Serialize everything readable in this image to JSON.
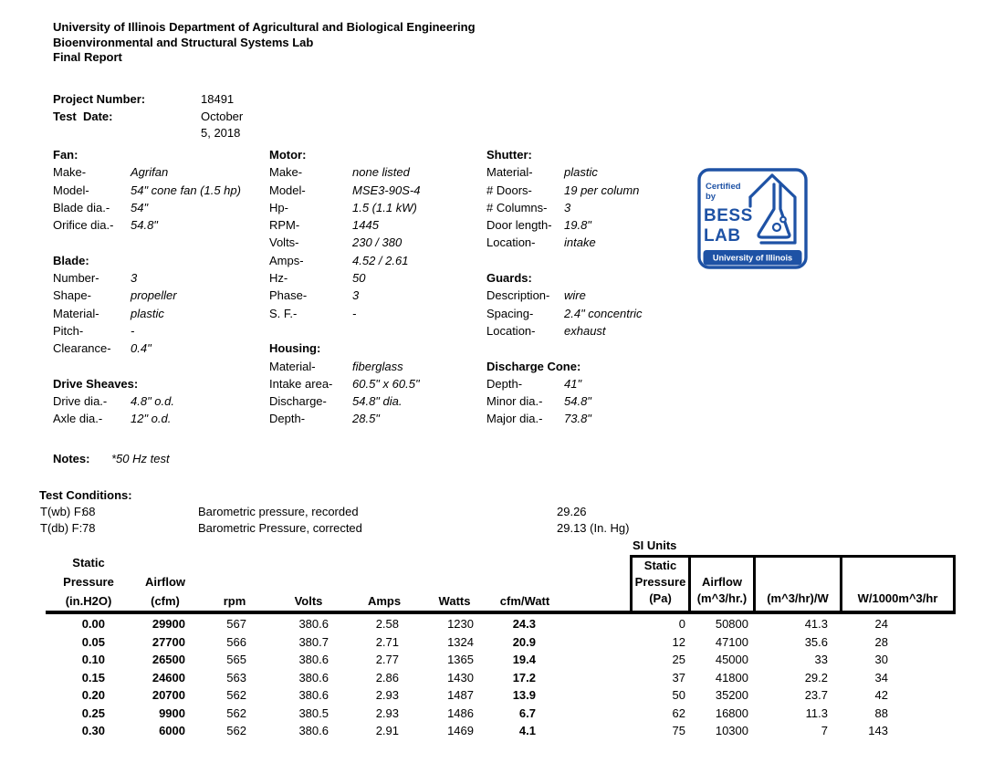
{
  "header": {
    "line1": "University of Illinois Department of Agricultural and Biological Engineering",
    "line2": "Bioenvironmental and Structural Systems Lab",
    "line3": "Final Report"
  },
  "project": {
    "number_label": "Project Number:",
    "number_value": "18491",
    "date_label": "Test  Date:",
    "date_value": "October 5, 2018"
  },
  "specs": {
    "col1": [
      {
        "t": "h",
        "label": "Fan:"
      },
      {
        "t": "r",
        "label": "Make-",
        "value": "Agrifan"
      },
      {
        "t": "r",
        "label": "Model-",
        "value": "54\" cone fan (1.5 hp)"
      },
      {
        "t": "r",
        "label": "Blade dia.-",
        "value": "54\""
      },
      {
        "t": "r",
        "label": "Orifice dia.-",
        "value": "54.8\""
      },
      {
        "t": "b"
      },
      {
        "t": "h",
        "label": "Blade:"
      },
      {
        "t": "r",
        "label": "Number-",
        "value": "3"
      },
      {
        "t": "r",
        "label": "Shape-",
        "value": "propeller"
      },
      {
        "t": "r",
        "label": "Material-",
        "value": "plastic"
      },
      {
        "t": "r",
        "label": "Pitch-",
        "value": "-"
      },
      {
        "t": "r",
        "label": "Clearance-",
        "value": "0.4\""
      },
      {
        "t": "b"
      },
      {
        "t": "h",
        "label": "Drive Sheaves:"
      },
      {
        "t": "r",
        "label": "Drive dia.-",
        "value": "4.8\" o.d."
      },
      {
        "t": "r",
        "label": "Axle dia.-",
        "value": "12\" o.d."
      }
    ],
    "col2": [
      {
        "t": "h",
        "label": "Motor:"
      },
      {
        "t": "r",
        "label": "Make-",
        "value": "none listed"
      },
      {
        "t": "r",
        "label": "Model-",
        "value": "MSE3-90S-4"
      },
      {
        "t": "r",
        "label": "Hp-",
        "value": "1.5 (1.1 kW)"
      },
      {
        "t": "r",
        "label": "RPM-",
        "value": "1445"
      },
      {
        "t": "r",
        "label": "Volts-",
        "value": "230 / 380"
      },
      {
        "t": "r",
        "label": "Amps-",
        "value": "4.52 / 2.61"
      },
      {
        "t": "r",
        "label": "Hz-",
        "value": "50"
      },
      {
        "t": "r",
        "label": "Phase-",
        "value": "3"
      },
      {
        "t": "r",
        "label": "S. F.-",
        "value": "-"
      },
      {
        "t": "b"
      },
      {
        "t": "h",
        "label": "Housing:"
      },
      {
        "t": "r",
        "label": "Material-",
        "value": "fiberglass"
      },
      {
        "t": "r",
        "label": "Intake area-",
        "value": "60.5\" x 60.5\""
      },
      {
        "t": "r",
        "label": "Discharge-",
        "value": "54.8\" dia."
      },
      {
        "t": "r",
        "label": "Depth-",
        "value": "28.5\""
      }
    ],
    "col3": [
      {
        "t": "h",
        "label": "Shutter:"
      },
      {
        "t": "r",
        "label": "Material-",
        "value": "plastic"
      },
      {
        "t": "r",
        "label": "# Doors-",
        "value": "19 per column"
      },
      {
        "t": "r",
        "label": "# Columns-",
        "value": "3"
      },
      {
        "t": "r",
        "label": "Door length-",
        "value": "19.8\""
      },
      {
        "t": "r",
        "label": "Location-",
        "value": "intake"
      },
      {
        "t": "b"
      },
      {
        "t": "h",
        "label": "Guards:"
      },
      {
        "t": "r",
        "label": "Description-",
        "value": "wire"
      },
      {
        "t": "r",
        "label": "Spacing-",
        "value": "2.4\" concentric"
      },
      {
        "t": "r",
        "label": "Location-",
        "value": "exhaust"
      },
      {
        "t": "b"
      },
      {
        "t": "h",
        "label": "Discharge Cone:"
      },
      {
        "t": "r",
        "label": "Depth-",
        "value": "41\""
      },
      {
        "t": "r",
        "label": "Minor dia.-",
        "value": "54.8\""
      },
      {
        "t": "r",
        "label": "Major dia.-",
        "value": "73.8\""
      }
    ]
  },
  "logo": {
    "certified": "Certified",
    "by": "by",
    "name1": "BESS",
    "name2": "LAB",
    "footer": "University of Illinois",
    "blue": "#1e52a5"
  },
  "notes": {
    "label": "Notes:",
    "value": "*50 Hz test"
  },
  "test_conditions": {
    "title": "Test Conditions:",
    "rows": [
      {
        "t_label": "T(wb) F:",
        "t_value": "68",
        "b_label": "Barometric pressure, recorded",
        "b_value": "29.26"
      },
      {
        "t_label": "T(db) F:",
        "t_value": "78",
        "b_label": "Barometric Pressure, corrected",
        "b_value": "29.13 (In. Hg)"
      }
    ]
  },
  "table": {
    "si_units_label": "SI Units",
    "imperial_headers": [
      [
        "Static",
        "Pressure",
        "(in.H2O)"
      ],
      [
        "",
        "Airflow",
        "(cfm)"
      ],
      [
        "",
        "",
        "rpm"
      ],
      [
        "",
        "",
        "Volts"
      ],
      [
        "",
        "",
        "Amps"
      ],
      [
        "",
        "",
        "Watts"
      ],
      [
        "",
        "",
        "cfm/Watt"
      ]
    ],
    "si_headers": [
      [
        "Static",
        "Pressure",
        "(Pa)"
      ],
      [
        "",
        "Airflow",
        "(m^3/hr.)"
      ],
      [
        "",
        "",
        "(m^3/hr)/W"
      ],
      [
        "",
        "",
        "W/1000m^3/hr"
      ]
    ],
    "rows": [
      [
        "0.00",
        "29900",
        "567",
        "380.6",
        "2.58",
        "1230",
        "24.3",
        "0",
        "50800",
        "41.3",
        "24"
      ],
      [
        "0.05",
        "27700",
        "566",
        "380.7",
        "2.71",
        "1324",
        "20.9",
        "12",
        "47100",
        "35.6",
        "28"
      ],
      [
        "0.10",
        "26500",
        "565",
        "380.6",
        "2.77",
        "1365",
        "19.4",
        "25",
        "45000",
        "33",
        "30"
      ],
      [
        "0.15",
        "24600",
        "563",
        "380.6",
        "2.86",
        "1430",
        "17.2",
        "37",
        "41800",
        "29.2",
        "34"
      ],
      [
        "0.20",
        "20700",
        "562",
        "380.6",
        "2.93",
        "1487",
        "13.9",
        "50",
        "35200",
        "23.7",
        "42"
      ],
      [
        "0.25",
        "9900",
        "562",
        "380.5",
        "2.93",
        "1486",
        "6.7",
        "62",
        "16800",
        "11.3",
        "88"
      ],
      [
        "0.30",
        "6000",
        "562",
        "380.6",
        "2.91",
        "1469",
        "4.1",
        "75",
        "10300",
        "7",
        "143"
      ]
    ]
  }
}
